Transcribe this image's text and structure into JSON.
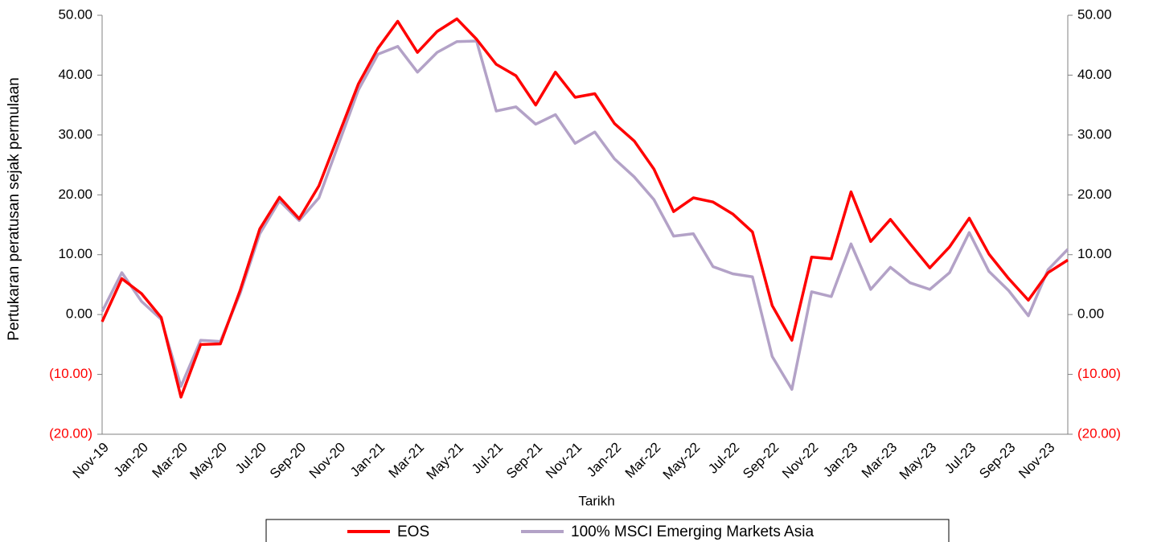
{
  "chart_data": {
    "type": "line",
    "x_label": "Tarikh",
    "y_label": "Pertukaran peratusan sejak permulaan",
    "categories": [
      "Nov-19",
      null,
      "Jan-20",
      null,
      "Mar-20",
      null,
      "May-20",
      null,
      "Jul-20",
      null,
      "Sep-20",
      null,
      "Nov-20",
      null,
      "Jan-21",
      null,
      "Mar-21",
      null,
      "May-21",
      null,
      "Jul-21",
      null,
      "Sep-21",
      null,
      "Nov-21",
      null,
      "Jan-22",
      null,
      "Mar-22",
      null,
      "May-22",
      null,
      "Jul-22",
      null,
      "Sep-22",
      null,
      "Nov-22",
      null,
      "Jan-23",
      null,
      "Mar-23",
      null,
      "May-23",
      null,
      "Jul-23",
      null,
      "Sep-23",
      null,
      "Nov-23",
      null
    ],
    "series": [
      {
        "name": "EOS",
        "color": "#ff0000",
        "values": [
          -1.2,
          6.0,
          3.5,
          -0.5,
          -13.8,
          -5.0,
          -4.9,
          4.0,
          14.3,
          19.6,
          16.0,
          21.5,
          30.0,
          38.5,
          44.5,
          49.0,
          43.8,
          47.3,
          49.4,
          46.0,
          41.8,
          39.9,
          35.0,
          40.5,
          36.3,
          36.9,
          31.9,
          29.0,
          24.3,
          17.2,
          19.5,
          18.8,
          16.8,
          13.8,
          1.5,
          -4.3,
          9.6,
          9.3,
          20.5,
          12.2,
          15.9,
          11.8,
          7.8,
          11.3,
          16.1,
          10.1,
          6.0,
          2.4,
          7.0,
          9.1
        ]
      },
      {
        "name": "100% MSCI Emerging Markets Asia",
        "color": "#b3a2c7",
        "values": [
          0.5,
          7.0,
          2.2,
          -0.8,
          -12.0,
          -4.3,
          -4.5,
          3.5,
          13.5,
          19.0,
          15.7,
          19.5,
          28.5,
          37.5,
          43.5,
          44.8,
          40.5,
          43.8,
          45.6,
          45.7,
          34.0,
          34.7,
          31.8,
          33.4,
          28.6,
          30.5,
          26.0,
          23.0,
          19.2,
          13.1,
          13.5,
          8.0,
          6.8,
          6.3,
          -7.0,
          -12.5,
          3.8,
          3.0,
          11.8,
          4.2,
          7.9,
          5.3,
          4.2,
          7.0,
          13.7,
          7.2,
          4.0,
          -0.2,
          7.5,
          10.9
        ]
      }
    ],
    "ylim": [
      -20,
      50
    ],
    "yticks": [
      {
        "value": -20,
        "label": "(20.00)"
      },
      {
        "value": -10,
        "label": "(10.00)"
      },
      {
        "value": 0,
        "label": "0.00"
      },
      {
        "value": 10,
        "label": "10.00"
      },
      {
        "value": 20,
        "label": "20.00"
      },
      {
        "value": 30,
        "label": "30.00"
      },
      {
        "value": 40,
        "label": "40.00"
      },
      {
        "value": 50,
        "label": "50.00"
      }
    ],
    "y2lim": [
      -20,
      50
    ],
    "y2ticks": [
      {
        "value": -20,
        "label": "(20.00)"
      },
      {
        "value": -10,
        "label": "(10.00)"
      },
      {
        "value": 0,
        "label": "0.00"
      },
      {
        "value": 10,
        "label": "10.00"
      },
      {
        "value": 20,
        "label": "20.00"
      },
      {
        "value": 30,
        "label": "30.00"
      },
      {
        "value": 40,
        "label": "40.00"
      },
      {
        "value": 50,
        "label": "50.00"
      }
    ],
    "negative_tick_color": "#ff0000",
    "axis_color": "#808080",
    "grid": false,
    "legend": "bottom"
  }
}
